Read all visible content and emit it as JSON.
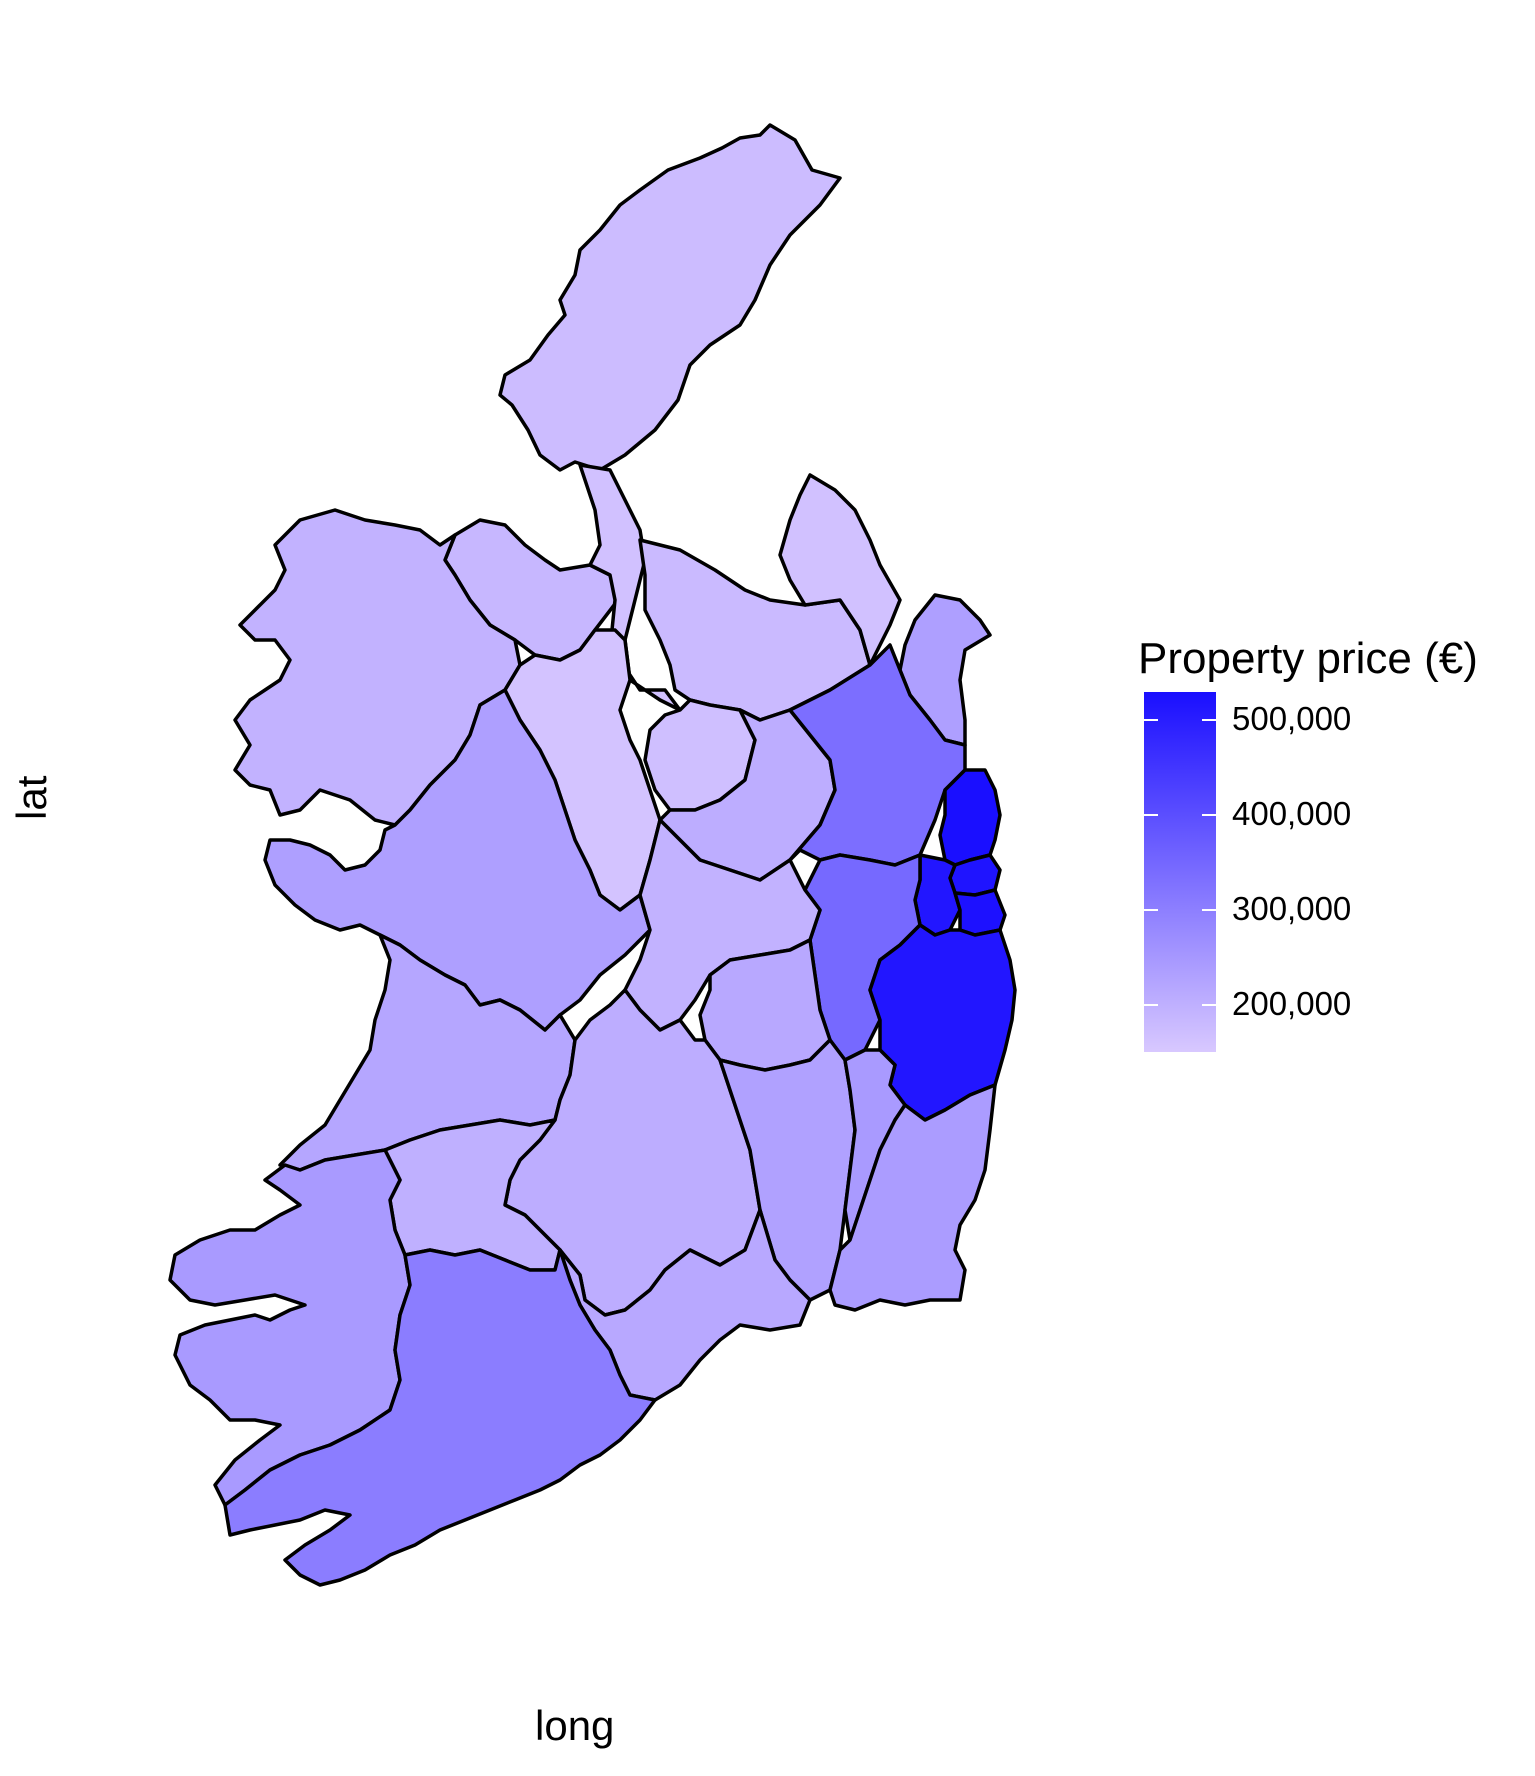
{
  "chart_data": {
    "type": "choropleth",
    "xlabel": "long",
    "ylabel": "lat",
    "legend": {
      "title": "Property price (€)",
      "placement": "right",
      "breaks": [
        {
          "value": 500000,
          "label": "500,000"
        },
        {
          "value": 400000,
          "label": "400,000"
        },
        {
          "value": 300000,
          "label": "300,000"
        },
        {
          "value": 200000,
          "label": "200,000"
        }
      ],
      "range": [
        150000,
        530000
      ],
      "low_color": "#d8c8ff",
      "high_color": "#1a0fff"
    },
    "grid": false,
    "regions": [
      {
        "id": "donegal",
        "value": 175000
      },
      {
        "id": "sligo",
        "value": 185000
      },
      {
        "id": "leitrim",
        "value": 165000
      },
      {
        "id": "cavan",
        "value": 178000
      },
      {
        "id": "monaghan",
        "value": 165000
      },
      {
        "id": "louth",
        "value": 235000
      },
      {
        "id": "mayo",
        "value": 195000
      },
      {
        "id": "roscommon",
        "value": 160000
      },
      {
        "id": "longford",
        "value": 168000
      },
      {
        "id": "westmeath",
        "value": 205000
      },
      {
        "id": "meath",
        "value": 335000
      },
      {
        "id": "fingal",
        "value": 530000
      },
      {
        "id": "dublin-city",
        "value": 520000
      },
      {
        "id": "dun-laoghaire",
        "value": 525000
      },
      {
        "id": "south-dublin",
        "value": 515000
      },
      {
        "id": "galway",
        "value": 235000
      },
      {
        "id": "offaly",
        "value": 195000
      },
      {
        "id": "kildare",
        "value": 345000
      },
      {
        "id": "wicklow",
        "value": 515000
      },
      {
        "id": "laois",
        "value": 215000
      },
      {
        "id": "clare",
        "value": 220000
      },
      {
        "id": "tipperary",
        "value": 205000
      },
      {
        "id": "kilkenny",
        "value": 230000
      },
      {
        "id": "carlow",
        "value": 245000
      },
      {
        "id": "wexford",
        "value": 240000
      },
      {
        "id": "limerick",
        "value": 200000
      },
      {
        "id": "waterford",
        "value": 215000
      },
      {
        "id": "kerry",
        "value": 245000
      },
      {
        "id": "cork",
        "value": 305000
      }
    ]
  }
}
